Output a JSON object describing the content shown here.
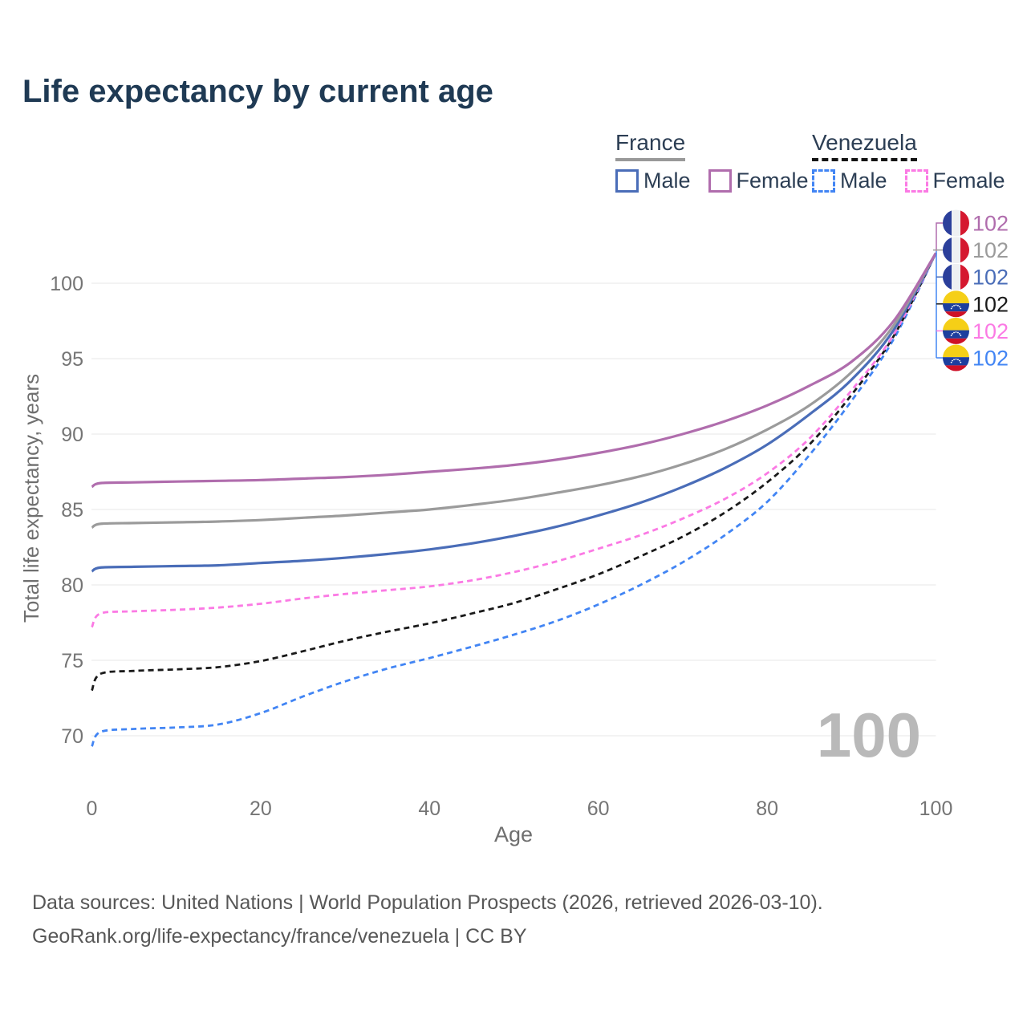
{
  "title": "Life expectancy by current age",
  "legend": {
    "groups": [
      {
        "name": "France",
        "style": "solid",
        "line_color": "#999999",
        "entries": [
          {
            "label": "Male",
            "color": "#4a6db8"
          },
          {
            "label": "Female",
            "color": "#b06dad"
          }
        ]
      },
      {
        "name": "Venezuela",
        "style": "dashed",
        "line_color": "#141414",
        "entries": [
          {
            "label": "Male",
            "color": "#4285f4"
          },
          {
            "label": "Female",
            "color": "#fb7ae4"
          }
        ]
      }
    ]
  },
  "chart_data": {
    "type": "line",
    "title": "Life expectancy by current age",
    "xlabel": "Age",
    "ylabel": "Total life expectancy, years",
    "x_ticks": [
      0,
      20,
      40,
      60,
      80,
      100
    ],
    "y_ticks": [
      70,
      75,
      80,
      85,
      90,
      95,
      100
    ],
    "xlim": [
      0,
      100
    ],
    "ylim": [
      69,
      103
    ],
    "grid": "horizontal-only",
    "gridline_color": "#e7e7e7",
    "tick_label_color": "#757575",
    "axis_title_color": "#6f6f6f",
    "age_counter_watermark": "100",
    "watermark_color": "#b9b9b9",
    "series": [
      {
        "name": "Venezuela Male",
        "country": "Venezuela",
        "sex": "Male",
        "color": "#4285f4",
        "dash": "dashed",
        "end_label": "102",
        "points": [
          [
            0,
            69.3
          ],
          [
            1,
            70.25
          ],
          [
            5,
            70.45
          ],
          [
            10,
            70.55
          ],
          [
            15,
            70.75
          ],
          [
            20,
            71.5
          ],
          [
            25,
            72.6
          ],
          [
            30,
            73.6
          ],
          [
            35,
            74.45
          ],
          [
            40,
            75.15
          ],
          [
            45,
            75.9
          ],
          [
            50,
            76.7
          ],
          [
            55,
            77.6
          ],
          [
            60,
            78.7
          ],
          [
            65,
            80.0
          ],
          [
            70,
            81.5
          ],
          [
            75,
            83.3
          ],
          [
            80,
            85.5
          ],
          [
            85,
            88.6
          ],
          [
            90,
            92.2
          ],
          [
            95,
            96.3
          ],
          [
            100,
            102
          ]
        ]
      },
      {
        "name": "Venezuela",
        "country": "Venezuela",
        "sex": "Both",
        "color": "#1a1a1a",
        "dash": "dashed",
        "end_label": "102",
        "points": [
          [
            0,
            73.0
          ],
          [
            1,
            74.1
          ],
          [
            5,
            74.3
          ],
          [
            10,
            74.4
          ],
          [
            15,
            74.55
          ],
          [
            20,
            74.95
          ],
          [
            25,
            75.6
          ],
          [
            30,
            76.3
          ],
          [
            35,
            76.9
          ],
          [
            40,
            77.45
          ],
          [
            45,
            78.1
          ],
          [
            50,
            78.8
          ],
          [
            55,
            79.7
          ],
          [
            60,
            80.7
          ],
          [
            65,
            81.9
          ],
          [
            70,
            83.2
          ],
          [
            75,
            84.8
          ],
          [
            80,
            86.8
          ],
          [
            85,
            89.3
          ],
          [
            90,
            92.6
          ],
          [
            95,
            96.5
          ],
          [
            100,
            102
          ]
        ]
      },
      {
        "name": "Venezuela Female",
        "country": "Venezuela",
        "sex": "Female",
        "color": "#fb7ae4",
        "dash": "dashed",
        "end_label": "102",
        "points": [
          [
            0,
            77.2
          ],
          [
            1,
            78.1
          ],
          [
            5,
            78.25
          ],
          [
            10,
            78.35
          ],
          [
            15,
            78.5
          ],
          [
            20,
            78.75
          ],
          [
            25,
            79.1
          ],
          [
            30,
            79.4
          ],
          [
            35,
            79.65
          ],
          [
            40,
            79.9
          ],
          [
            45,
            80.3
          ],
          [
            50,
            80.85
          ],
          [
            55,
            81.55
          ],
          [
            60,
            82.4
          ],
          [
            65,
            83.3
          ],
          [
            70,
            84.4
          ],
          [
            75,
            85.7
          ],
          [
            80,
            87.4
          ],
          [
            85,
            89.7
          ],
          [
            90,
            92.9
          ],
          [
            95,
            96.6
          ],
          [
            100,
            102
          ]
        ]
      },
      {
        "name": "France Male",
        "country": "France",
        "sex": "Male",
        "color": "#4a6db8",
        "dash": "solid",
        "end_label": "102",
        "points": [
          [
            0,
            80.9
          ],
          [
            1,
            81.15
          ],
          [
            5,
            81.2
          ],
          [
            10,
            81.25
          ],
          [
            15,
            81.3
          ],
          [
            20,
            81.45
          ],
          [
            25,
            81.6
          ],
          [
            30,
            81.8
          ],
          [
            35,
            82.05
          ],
          [
            40,
            82.35
          ],
          [
            45,
            82.75
          ],
          [
            50,
            83.25
          ],
          [
            55,
            83.85
          ],
          [
            60,
            84.6
          ],
          [
            65,
            85.45
          ],
          [
            70,
            86.5
          ],
          [
            75,
            87.75
          ],
          [
            80,
            89.3
          ],
          [
            85,
            91.3
          ],
          [
            90,
            93.6
          ],
          [
            95,
            96.9
          ],
          [
            100,
            102
          ]
        ]
      },
      {
        "name": "France",
        "country": "France",
        "sex": "Both",
        "color": "#9b9b9b",
        "dash": "solid",
        "end_label": "102",
        "points": [
          [
            0,
            83.8
          ],
          [
            1,
            84.05
          ],
          [
            5,
            84.1
          ],
          [
            10,
            84.15
          ],
          [
            15,
            84.2
          ],
          [
            20,
            84.3
          ],
          [
            25,
            84.45
          ],
          [
            30,
            84.6
          ],
          [
            35,
            84.8
          ],
          [
            40,
            85.0
          ],
          [
            45,
            85.3
          ],
          [
            50,
            85.65
          ],
          [
            55,
            86.1
          ],
          [
            60,
            86.6
          ],
          [
            65,
            87.2
          ],
          [
            70,
            88.0
          ],
          [
            75,
            89.0
          ],
          [
            80,
            90.3
          ],
          [
            85,
            91.9
          ],
          [
            90,
            94.1
          ],
          [
            95,
            97.2
          ],
          [
            100,
            102
          ]
        ]
      },
      {
        "name": "France Female",
        "country": "France",
        "sex": "Female",
        "color": "#b06dad",
        "dash": "solid",
        "end_label": "102",
        "points": [
          [
            0,
            86.5
          ],
          [
            1,
            86.75
          ],
          [
            5,
            86.8
          ],
          [
            10,
            86.85
          ],
          [
            15,
            86.9
          ],
          [
            20,
            86.95
          ],
          [
            25,
            87.05
          ],
          [
            30,
            87.15
          ],
          [
            35,
            87.3
          ],
          [
            40,
            87.5
          ],
          [
            45,
            87.7
          ],
          [
            50,
            87.95
          ],
          [
            55,
            88.3
          ],
          [
            60,
            88.75
          ],
          [
            65,
            89.3
          ],
          [
            70,
            90.0
          ],
          [
            75,
            90.85
          ],
          [
            80,
            91.9
          ],
          [
            85,
            93.2
          ],
          [
            90,
            94.8
          ],
          [
            95,
            97.5
          ],
          [
            100,
            102
          ]
        ]
      }
    ],
    "end_labels": [
      {
        "series": "France Female",
        "flag": "france",
        "value": "102",
        "color": "#b06dad"
      },
      {
        "series": "France",
        "flag": "france",
        "value": "102",
        "color": "#9b9b9b"
      },
      {
        "series": "France Male",
        "flag": "france",
        "value": "102",
        "color": "#4a6db8"
      },
      {
        "series": "Venezuela",
        "flag": "venezuela",
        "value": "102",
        "color": "#1a1a1a"
      },
      {
        "series": "Venezuela Female",
        "flag": "venezuela",
        "value": "102",
        "color": "#fb7ae4"
      },
      {
        "series": "Venezuela Male",
        "flag": "venezuela",
        "value": "102",
        "color": "#4285f4"
      }
    ],
    "legend_position": "top-right"
  },
  "footer": {
    "line1": "Data sources: United Nations | World Population Prospects (2026, retrieved 2026-03-10).",
    "line2": "GeoRank.org/life-expectancy/france/venezuela | CC BY"
  }
}
